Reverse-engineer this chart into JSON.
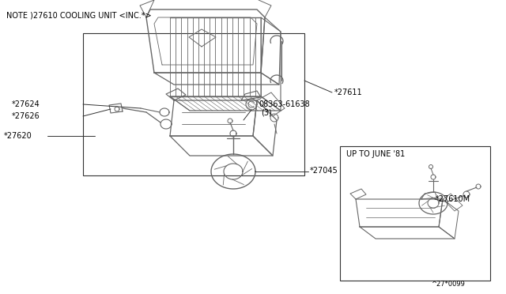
{
  "bg_color": "#ffffff",
  "line_color": "#666666",
  "dark_color": "#333333",
  "title_note": "NOTE )27610 COOLING UNIT <INC.*>",
  "page_ref": "^27*0099",
  "inset_title": "UP TO JUNE '81",
  "fs_main": 7,
  "fs_tiny": 6,
  "fig_w": 6.4,
  "fig_h": 3.72,
  "dpi": 100
}
